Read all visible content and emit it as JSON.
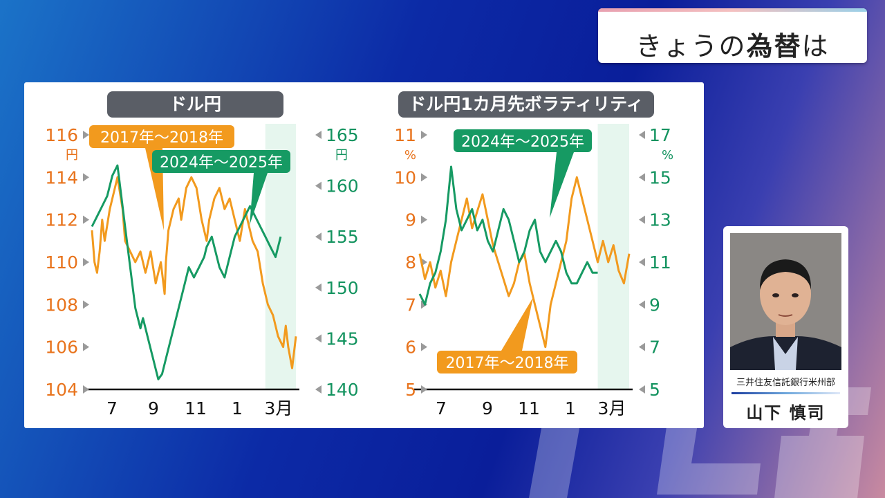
{
  "topic": {
    "prefix": "きょうの",
    "bold": "為替",
    "suffix": "は"
  },
  "colors": {
    "orange": "#f29a1e",
    "green": "#169a63",
    "orange_text": "#e8731c",
    "green_text": "#13935f",
    "highlight": "#e6f6ee"
  },
  "chart_data": [
    {
      "type": "line",
      "title": "ドル円",
      "x_ticks": [
        "7",
        "9",
        "11",
        "1",
        "3月"
      ],
      "y_left": {
        "ticks": [
          104,
          106,
          108,
          110,
          112,
          114,
          116
        ],
        "unit": "円",
        "range": [
          104,
          116
        ]
      },
      "y_right": {
        "ticks": [
          140,
          145,
          150,
          155,
          160,
          165
        ],
        "unit": "円",
        "range": [
          140,
          165
        ]
      },
      "highlight_x": [
        6.8,
        8.0
      ],
      "series": [
        {
          "name": "2017年～2018年",
          "axis": "left",
          "x": [
            0.0,
            0.1,
            0.2,
            0.3,
            0.4,
            0.5,
            0.7,
            0.9,
            1.0,
            1.2,
            1.3,
            1.5,
            1.7,
            1.9,
            2.1,
            2.3,
            2.5,
            2.7,
            2.85,
            2.9,
            3.0,
            3.1,
            3.2,
            3.4,
            3.5,
            3.7,
            3.9,
            4.1,
            4.3,
            4.5,
            4.6,
            4.8,
            5.0,
            5.2,
            5.4,
            5.6,
            5.8,
            6.0,
            6.1,
            6.3,
            6.5,
            6.7,
            6.9,
            7.1,
            7.3,
            7.5,
            7.6,
            7.7,
            7.85,
            8.0
          ],
          "y": [
            111.5,
            110.0,
            109.5,
            110.5,
            112.0,
            111.0,
            112.5,
            113.5,
            114.0,
            112.5,
            111.0,
            110.5,
            110.0,
            110.5,
            109.5,
            110.5,
            109.0,
            110.0,
            108.5,
            110.0,
            111.5,
            112.0,
            112.5,
            113.0,
            112.0,
            113.5,
            114.0,
            113.5,
            112.0,
            111.0,
            112.0,
            113.0,
            113.5,
            112.5,
            113.0,
            112.0,
            111.0,
            112.5,
            112.0,
            111.0,
            110.5,
            109.0,
            108.0,
            107.5,
            106.5,
            106.0,
            107.0,
            106.0,
            105.0,
            106.5
          ]
        },
        {
          "name": "2024年～2025年",
          "axis": "right",
          "x": [
            0.0,
            0.2,
            0.4,
            0.6,
            0.8,
            1.0,
            1.1,
            1.3,
            1.5,
            1.7,
            1.9,
            2.0,
            2.2,
            2.4,
            2.5,
            2.6,
            2.75,
            2.9,
            3.0,
            3.2,
            3.4,
            3.6,
            3.8,
            4.0,
            4.2,
            4.4,
            4.5,
            4.7,
            4.9,
            5.0,
            5.2,
            5.4,
            5.6,
            5.8,
            6.0,
            6.2,
            6.4,
            6.6,
            6.8,
            7.0,
            7.2,
            7.4
          ],
          "y": [
            156,
            157,
            158,
            159,
            161,
            162,
            160,
            156,
            152,
            148,
            146,
            147,
            145,
            143,
            142,
            141,
            141.5,
            143,
            144,
            146,
            148,
            150,
            152,
            151,
            152,
            153,
            154,
            155,
            153,
            152,
            151,
            153,
            155,
            156,
            157,
            158,
            157,
            156,
            155,
            154,
            153,
            155
          ]
        }
      ]
    },
    {
      "type": "line",
      "title": "ドル円1カ月先ボラティリティ",
      "x_ticks": [
        "7",
        "9",
        "11",
        "1",
        "3月"
      ],
      "y_left": {
        "ticks": [
          5,
          6,
          7,
          8,
          9,
          10,
          11
        ],
        "unit": "%",
        "range": [
          5,
          11
        ]
      },
      "y_right": {
        "ticks": [
          5,
          7,
          9,
          11,
          13,
          15,
          17
        ],
        "unit": "%",
        "range": [
          5,
          17
        ]
      },
      "highlight_x": [
        6.8,
        8.0
      ],
      "series": [
        {
          "name": "2017年～2018年",
          "axis": "left",
          "x": [
            0.0,
            0.2,
            0.4,
            0.6,
            0.8,
            1.0,
            1.2,
            1.4,
            1.6,
            1.8,
            2.0,
            2.2,
            2.4,
            2.6,
            2.8,
            3.0,
            3.2,
            3.4,
            3.6,
            3.8,
            4.0,
            4.2,
            4.4,
            4.6,
            4.8,
            5.0,
            5.2,
            5.4,
            5.6,
            5.8,
            6.0,
            6.2,
            6.4,
            6.6,
            6.8,
            7.0,
            7.2,
            7.4,
            7.6,
            7.8,
            8.0
          ],
          "y": [
            8.2,
            7.6,
            8.0,
            7.4,
            7.8,
            7.2,
            8.0,
            8.5,
            9.0,
            9.5,
            8.8,
            9.2,
            9.6,
            9.0,
            8.4,
            8.0,
            7.6,
            7.2,
            7.5,
            8.0,
            8.2,
            7.5,
            7.0,
            6.5,
            6.0,
            7.0,
            7.5,
            8.0,
            8.5,
            9.5,
            10.0,
            9.5,
            9.0,
            8.5,
            8.0,
            8.5,
            8.0,
            8.4,
            7.8,
            7.5,
            8.2
          ]
        },
        {
          "name": "2024年～2025年",
          "axis": "right",
          "x": [
            0.0,
            0.2,
            0.4,
            0.6,
            0.8,
            1.0,
            1.2,
            1.4,
            1.6,
            1.8,
            2.0,
            2.2,
            2.4,
            2.6,
            2.8,
            3.0,
            3.2,
            3.4,
            3.6,
            3.8,
            4.0,
            4.2,
            4.4,
            4.6,
            4.8,
            5.0,
            5.2,
            5.4,
            5.6,
            5.8,
            6.0,
            6.2,
            6.4,
            6.6,
            6.8
          ],
          "y": [
            9.5,
            9.0,
            10.0,
            10.5,
            11.5,
            13.0,
            15.5,
            13.5,
            12.5,
            13.0,
            13.5,
            12.5,
            13.0,
            12.0,
            11.5,
            12.5,
            13.5,
            13.0,
            12.0,
            11.0,
            11.5,
            12.5,
            13.0,
            11.5,
            11.0,
            11.5,
            12.0,
            11.5,
            10.5,
            10.0,
            10.0,
            10.5,
            11.0,
            10.5,
            10.5
          ]
        }
      ]
    }
  ],
  "callouts": {
    "a_2017": "2017年～2018年",
    "a_2024": "2024年～2025年",
    "b_2024": "2024年～2025年",
    "b_2017": "2017年～2018年"
  },
  "person": {
    "affiliation": "三井住友信託銀行米州部",
    "name": "山下 慎司"
  }
}
